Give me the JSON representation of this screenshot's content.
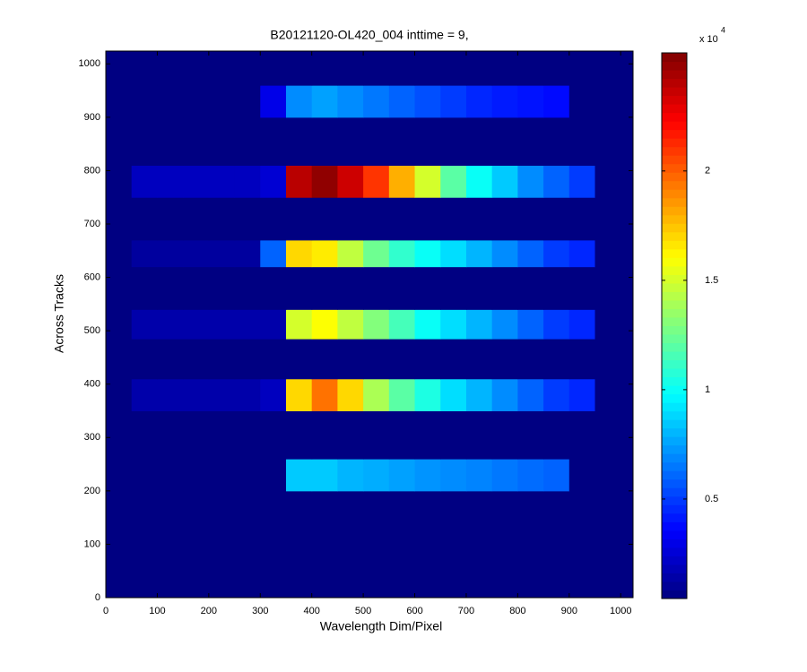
{
  "chart_data": {
    "type": "heatmap",
    "title": "B20121120-OL420_004 inttime = 9,",
    "xlabel": "Wavelength Dim/Pixel",
    "ylabel": "Across Tracks",
    "xbins": [
      0,
      50,
      100,
      150,
      200,
      250,
      300,
      350,
      400,
      450,
      500,
      550,
      600,
      650,
      700,
      750,
      800,
      850,
      900,
      950,
      1024
    ],
    "ybins": [
      0,
      200,
      260,
      350,
      410,
      485,
      540,
      620,
      670,
      750,
      810,
      900,
      960,
      1024
    ],
    "z": [
      [
        500,
        500,
        500,
        500,
        500,
        500,
        500,
        500,
        500,
        500,
        500,
        500,
        500,
        500,
        500,
        500,
        500,
        500,
        500,
        500
      ],
      [
        500,
        500,
        500,
        500,
        500,
        500,
        500,
        8500,
        8500,
        8000,
        7800,
        7500,
        7200,
        7000,
        6800,
        6500,
        6200,
        6000,
        500,
        500
      ],
      [
        500,
        500,
        500,
        500,
        500,
        500,
        500,
        500,
        500,
        500,
        500,
        500,
        500,
        500,
        500,
        500,
        500,
        500,
        500,
        500
      ],
      [
        500,
        1500,
        1500,
        1500,
        1500,
        1500,
        2000,
        17000,
        19500,
        17000,
        14000,
        12000,
        10500,
        9000,
        8000,
        7000,
        6000,
        5000,
        4500,
        500
      ],
      [
        500,
        500,
        500,
        500,
        500,
        500,
        500,
        500,
        500,
        500,
        500,
        500,
        500,
        500,
        500,
        500,
        500,
        500,
        500,
        500
      ],
      [
        500,
        1500,
        1500,
        1500,
        1500,
        1500,
        1500,
        15000,
        16000,
        14500,
        13000,
        11500,
        10000,
        9000,
        8000,
        7000,
        6000,
        5000,
        4500,
        500
      ],
      [
        500,
        500,
        500,
        500,
        500,
        500,
        500,
        500,
        500,
        500,
        500,
        500,
        500,
        500,
        500,
        500,
        500,
        500,
        500,
        500
      ],
      [
        500,
        1200,
        1200,
        1200,
        1200,
        1200,
        6000,
        17000,
        16500,
        14500,
        12500,
        11000,
        10000,
        9000,
        8000,
        7000,
        6000,
        5000,
        4500,
        500
      ],
      [
        500,
        500,
        500,
        500,
        500,
        500,
        500,
        500,
        500,
        500,
        500,
        500,
        500,
        500,
        500,
        500,
        500,
        500,
        500,
        500
      ],
      [
        500,
        2000,
        2000,
        2000,
        2000,
        2000,
        2500,
        24000,
        25000,
        23500,
        21000,
        18000,
        15000,
        12000,
        10000,
        8500,
        7000,
        6000,
        5000,
        500
      ],
      [
        500,
        500,
        500,
        500,
        500,
        500,
        500,
        500,
        500,
        500,
        500,
        500,
        500,
        500,
        500,
        500,
        500,
        500,
        500,
        500
      ],
      [
        500,
        500,
        500,
        500,
        500,
        500,
        3000,
        7000,
        7500,
        7000,
        6500,
        6000,
        5500,
        5000,
        4500,
        4200,
        4000,
        3800,
        500,
        500
      ],
      [
        500,
        500,
        500,
        500,
        500,
        500,
        500,
        500,
        500,
        500,
        500,
        500,
        500,
        500,
        500,
        500,
        500,
        500,
        500,
        500
      ]
    ],
    "xlim": [
      0,
      1024
    ],
    "ylim": [
      0,
      1024
    ],
    "xticks": [
      0,
      100,
      200,
      300,
      400,
      500,
      600,
      700,
      800,
      900,
      1000
    ],
    "yticks": [
      0,
      100,
      200,
      300,
      400,
      500,
      600,
      700,
      800,
      900,
      1000
    ],
    "colormap": "jet",
    "clim": [
      450,
      25400
    ],
    "cticks": [
      {
        "value": 5000,
        "label": "0.5"
      },
      {
        "value": 10000,
        "label": "1"
      },
      {
        "value": 15000,
        "label": "1.5"
      },
      {
        "value": 20000,
        "label": "2"
      }
    ],
    "colorbar_multiplier": {
      "base": "x 10",
      "exponent": "4"
    }
  }
}
